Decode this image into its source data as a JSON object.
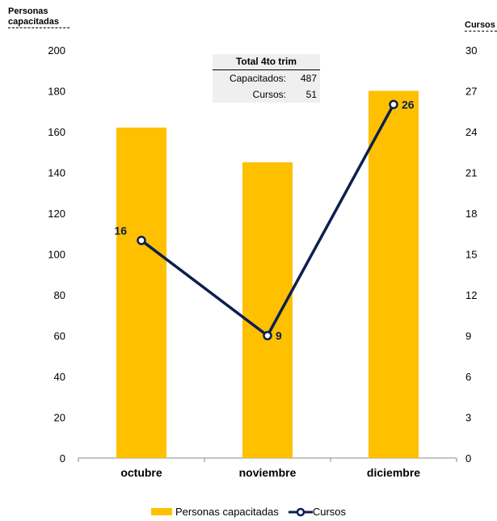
{
  "chart_data": {
    "type": "bar+line",
    "categories": [
      "octubre",
      "noviembre",
      "diciembre"
    ],
    "series": [
      {
        "name": "Personas capacitadas",
        "kind": "bar",
        "axis": "left",
        "values": [
          162,
          145,
          180
        ],
        "color": "#ffc000"
      },
      {
        "name": "Cursos",
        "kind": "line",
        "axis": "right",
        "values": [
          16,
          9,
          26
        ],
        "color": "#0d1f4f"
      }
    ],
    "ylabel_left": "Personas capacitadas",
    "ylabel_right": "Cursos",
    "ylim_left": [
      0,
      200
    ],
    "ylim_right": [
      0,
      30
    ],
    "yticks_left": [
      "0",
      "20",
      "40",
      "60",
      "80",
      "100",
      "120",
      "140",
      "160",
      "180",
      "200"
    ],
    "yticks_right": [
      "0",
      "3",
      "6",
      "9",
      "12",
      "15",
      "18",
      "21",
      "24",
      "27",
      "30"
    ],
    "data_labels": [
      "16",
      "9",
      "26"
    ],
    "grid": false,
    "legend_position": "bottom"
  },
  "summary": {
    "title": "Total  4to trim",
    "rows": [
      {
        "label": "Capacitados:",
        "value": "487"
      },
      {
        "label": "Cursos:",
        "value": "51"
      }
    ]
  },
  "legend": {
    "bar_label": "Personas capacitadas",
    "line_label": "Cursos"
  }
}
